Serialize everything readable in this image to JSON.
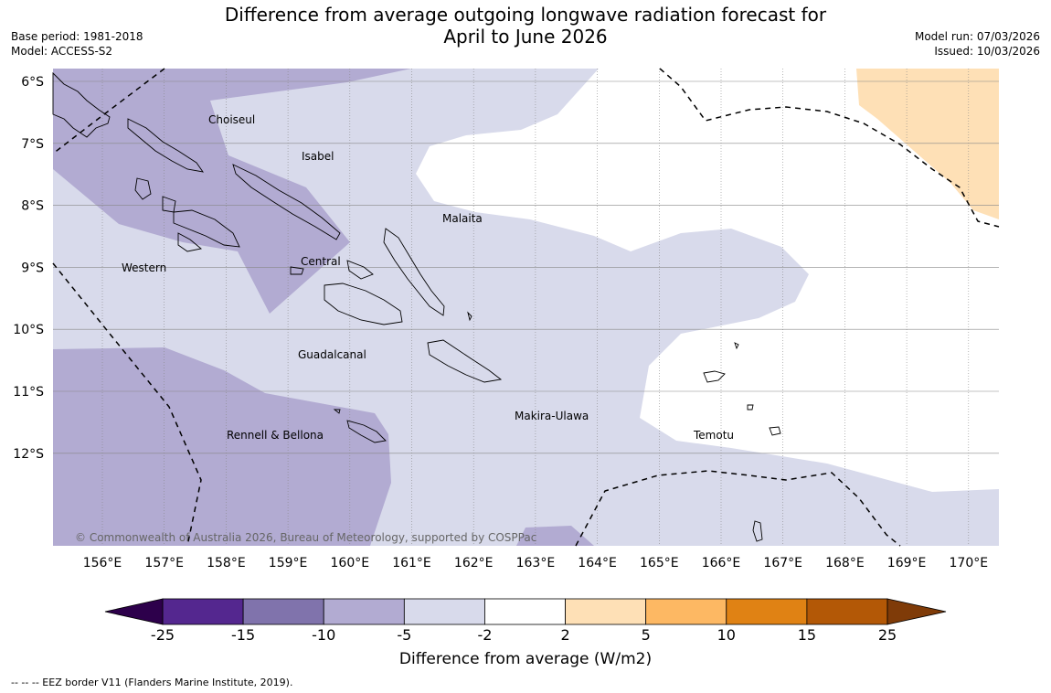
{
  "title_line1": "Difference from average outgoing longwave radiation forecast for",
  "title_line2": "April to June 2026",
  "base_period": "Base period: 1981-2018",
  "model": "Model: ACCESS-S2",
  "model_run": "Model run: 07/03/2026",
  "issued": "Issued: 10/03/2026",
  "copyright": "© Commonwealth of Australia 2026, Bureau of Meteorology, supported by COSPPac",
  "footnote": "--  --  -- EEZ border V11 (Flanders Marine Institute, 2019).",
  "colorbar": {
    "label": "Difference from average (W/m2)",
    "ticks": [
      "-25",
      "-15",
      "-10",
      "-5",
      "-2",
      "2",
      "5",
      "10",
      "15",
      "25"
    ],
    "colors": [
      "#54278f",
      "#8073ac",
      "#b2abd2",
      "#d8daeb",
      "#ffffff",
      "#fee0b6",
      "#fdb863",
      "#e08214",
      "#b35806"
    ],
    "under_color": "#2d004b",
    "over_color": "#7f3b08"
  },
  "axes": {
    "lon_labels": [
      "156°E",
      "157°E",
      "158°E",
      "159°E",
      "160°E",
      "161°E",
      "162°E",
      "163°E",
      "164°E",
      "165°E",
      "166°E",
      "167°E",
      "168°E",
      "169°E",
      "170°E"
    ],
    "lat_labels": [
      "6°S",
      "7°S",
      "8°S",
      "9°S",
      "10°S",
      "11°S",
      "12°S"
    ]
  },
  "provinces": [
    "Choiseul",
    "Isabel",
    "Malaita",
    "Western",
    "Central",
    "Guadalcanal",
    "Makira-Ulawa",
    "Rennell & Bellona",
    "Temotu"
  ],
  "colors": {
    "gridline": "#888888",
    "eez": "#000000"
  }
}
